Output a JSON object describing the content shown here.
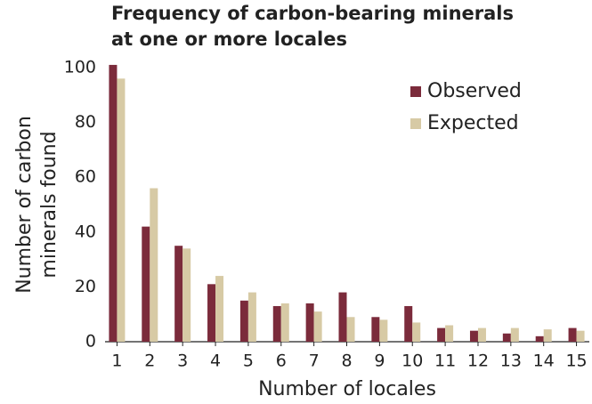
{
  "chart_data": {
    "type": "bar",
    "title": [
      "Frequency of carbon-bearing minerals",
      "at one or more locales"
    ],
    "x_label": "Number of locales",
    "y_label": [
      "Number of carbon",
      "minerals found"
    ],
    "categories": [
      "1",
      "2",
      "3",
      "4",
      "5",
      "6",
      "7",
      "8",
      "9",
      "10",
      "11",
      "12",
      "13",
      "14",
      "15"
    ],
    "series": [
      {
        "name": "Observed",
        "color": "#7b2b3b",
        "values": [
          101,
          42,
          35,
          21,
          15,
          13,
          14,
          18,
          9,
          13,
          5,
          4,
          3,
          2,
          5
        ]
      },
      {
        "name": "Expected",
        "color": "#d7caa5",
        "values": [
          96,
          56,
          34,
          24,
          18,
          14,
          11,
          9,
          8,
          7,
          6,
          5,
          5,
          4.5,
          4
        ]
      }
    ],
    "ylim": [
      0,
      100
    ],
    "yticks": [
      0,
      20,
      40,
      60,
      80,
      100
    ],
    "legend": "top-right"
  }
}
